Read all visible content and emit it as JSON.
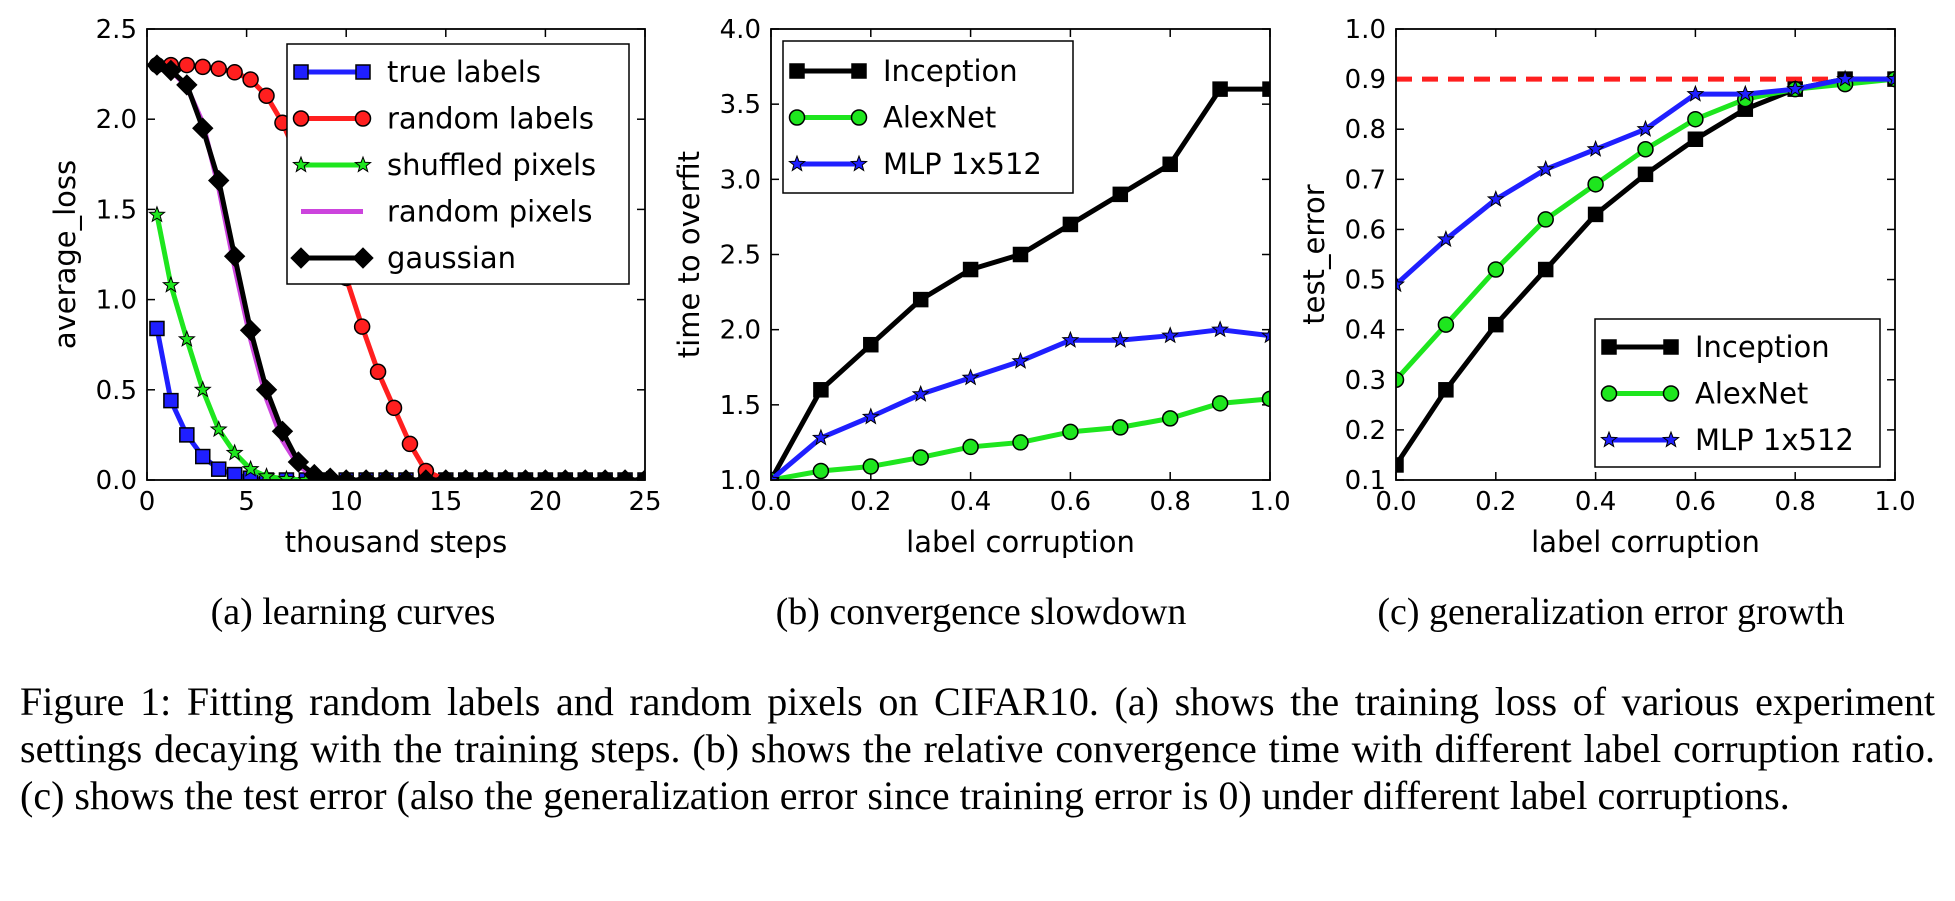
{
  "caption": "Figure 1: Fitting random labels and random pixels on CIFAR10. (a) shows the training loss of various experiment settings decaying with the training steps. (b) shows the relative convergence time with different label corruption ratio. (c) shows the test error (also the generalization error since training error is 0) under different label corruptions.",
  "chart_data": [
    {
      "id": "a",
      "type": "line",
      "subcaption": "(a) learning curves",
      "xlabel": "thousand steps",
      "ylabel": "average_loss",
      "xlim": [
        0,
        25
      ],
      "ylim": [
        0,
        2.5
      ],
      "xticks": [
        0,
        5,
        10,
        15,
        20,
        25
      ],
      "xtick_labels": [
        "0",
        "5",
        "10",
        "15",
        "20",
        "25"
      ],
      "yticks": [
        0,
        0.5,
        1.0,
        1.5,
        2.0,
        2.5
      ],
      "ytick_labels": [
        "0.0",
        "0.5",
        "1.0",
        "1.5",
        "2.0",
        "2.5"
      ],
      "grid": false,
      "legend_position": "top-right",
      "series": [
        {
          "name": "true labels",
          "color": "#1f1fff",
          "marker": "square",
          "x": [
            0.5,
            1.2,
            2.0,
            2.8,
            3.6,
            4.4,
            5.2,
            6.0,
            7.0,
            8.0,
            9.0,
            10,
            11,
            12,
            13,
            14,
            15,
            16,
            17,
            18,
            19,
            20,
            21,
            22,
            23,
            24,
            25
          ],
          "y": [
            0.84,
            0.44,
            0.25,
            0.13,
            0.06,
            0.03,
            0.01,
            0.0,
            0,
            0,
            0,
            0,
            0,
            0,
            0,
            0,
            0,
            0,
            0,
            0,
            0,
            0,
            0,
            0,
            0,
            0,
            0
          ]
        },
        {
          "name": "random labels",
          "color": "#ff1f1f",
          "marker": "circle",
          "x": [
            0.5,
            1.2,
            2.0,
            2.8,
            3.6,
            4.4,
            5.2,
            6.0,
            6.8,
            7.6,
            8.4,
            9.2,
            10.0,
            10.8,
            11.6,
            12.4,
            13.2,
            14.0,
            15,
            16,
            17,
            18,
            19,
            20,
            21,
            22,
            23,
            24,
            25
          ],
          "y": [
            2.3,
            2.3,
            2.3,
            2.29,
            2.28,
            2.26,
            2.22,
            2.13,
            1.98,
            1.78,
            1.52,
            1.23,
            1.12,
            0.85,
            0.6,
            0.4,
            0.2,
            0.05,
            0,
            0,
            0,
            0,
            0,
            0,
            0,
            0,
            0,
            0,
            0
          ]
        },
        {
          "name": "shuffled pixels",
          "color": "#1ee61e",
          "marker": "star",
          "x": [
            0.5,
            1.2,
            2.0,
            2.8,
            3.6,
            4.4,
            5.2,
            6.0,
            7.0,
            8.0,
            9.0,
            10,
            11,
            12,
            13,
            14,
            15,
            16,
            17,
            18,
            19,
            20,
            21,
            22,
            23,
            24,
            25
          ],
          "y": [
            1.47,
            1.08,
            0.78,
            0.5,
            0.28,
            0.15,
            0.06,
            0.02,
            0.005,
            0,
            0,
            0,
            0,
            0,
            0,
            0,
            0,
            0,
            0,
            0,
            0,
            0,
            0,
            0,
            0,
            0,
            0
          ]
        },
        {
          "name": "random pixels",
          "color": "#cc44dd",
          "marker": "none",
          "x": [
            0.5,
            1.2,
            2.0,
            2.8,
            3.6,
            4.4,
            5.2,
            6.0,
            6.8,
            7.6,
            8.4,
            9.2,
            10,
            25
          ],
          "y": [
            2.3,
            2.27,
            2.18,
            1.98,
            1.62,
            1.18,
            0.78,
            0.45,
            0.22,
            0.08,
            0.02,
            0.0,
            0.0,
            0.0
          ]
        },
        {
          "name": "gaussian",
          "color": "#000000",
          "marker": "diamond",
          "x": [
            0.5,
            1.2,
            2.0,
            2.8,
            3.6,
            4.4,
            5.2,
            6.0,
            6.8,
            7.6,
            8.4,
            9.2,
            10,
            11,
            12,
            13,
            14,
            15,
            16,
            17,
            18,
            19,
            20,
            21,
            22,
            23,
            24,
            25
          ],
          "y": [
            2.3,
            2.27,
            2.19,
            1.95,
            1.66,
            1.24,
            0.83,
            0.5,
            0.27,
            0.1,
            0.03,
            0.01,
            0,
            0,
            0,
            0,
            0,
            0,
            0,
            0,
            0,
            0,
            0,
            0,
            0,
            0,
            0,
            0
          ]
        }
      ]
    },
    {
      "id": "b",
      "type": "line",
      "subcaption": "(b) convergence slowdown",
      "xlabel": "label corruption",
      "ylabel": "time to overfit",
      "xlim": [
        0,
        1.0
      ],
      "ylim": [
        1.0,
        4.0
      ],
      "xticks": [
        0,
        0.2,
        0.4,
        0.6,
        0.8,
        1.0
      ],
      "xtick_labels": [
        "0.0",
        "0.2",
        "0.4",
        "0.6",
        "0.8",
        "1.0"
      ],
      "yticks": [
        1.0,
        1.5,
        2.0,
        2.5,
        3.0,
        3.5,
        4.0
      ],
      "ytick_labels": [
        "1.0",
        "1.5",
        "2.0",
        "2.5",
        "3.0",
        "3.5",
        "4.0"
      ],
      "grid": false,
      "legend_position": "top-left",
      "series": [
        {
          "name": "Inception",
          "color": "#000000",
          "marker": "square",
          "x": [
            0,
            0.1,
            0.2,
            0.3,
            0.4,
            0.5,
            0.6,
            0.7,
            0.8,
            0.9,
            1.0
          ],
          "y": [
            1.0,
            1.6,
            1.9,
            2.2,
            2.4,
            2.5,
            2.7,
            2.9,
            3.1,
            3.6,
            3.6
          ]
        },
        {
          "name": "AlexNet",
          "color": "#1ee61e",
          "marker": "circle",
          "x": [
            0,
            0.1,
            0.2,
            0.3,
            0.4,
            0.5,
            0.6,
            0.7,
            0.8,
            0.9,
            1.0
          ],
          "y": [
            1.0,
            1.06,
            1.09,
            1.15,
            1.22,
            1.25,
            1.32,
            1.35,
            1.41,
            1.51,
            1.54
          ]
        },
        {
          "name": "MLP 1x512",
          "color": "#1f1fff",
          "marker": "star",
          "x": [
            0,
            0.1,
            0.2,
            0.3,
            0.4,
            0.5,
            0.6,
            0.7,
            0.8,
            0.9,
            1.0
          ],
          "y": [
            1.0,
            1.28,
            1.42,
            1.57,
            1.68,
            1.79,
            1.93,
            1.93,
            1.96,
            2.0,
            1.96
          ]
        }
      ]
    },
    {
      "id": "c",
      "type": "line",
      "subcaption": "(c) generalization error growth",
      "xlabel": "label corruption",
      "ylabel": "test_error",
      "xlim": [
        0,
        1.0
      ],
      "ylim": [
        0.1,
        1.0
      ],
      "xticks": [
        0,
        0.2,
        0.4,
        0.6,
        0.8,
        1.0
      ],
      "xtick_labels": [
        "0.0",
        "0.2",
        "0.4",
        "0.6",
        "0.8",
        "1.0"
      ],
      "yticks": [
        0.1,
        0.2,
        0.3,
        0.4,
        0.5,
        0.6,
        0.7,
        0.8,
        0.9,
        1.0
      ],
      "ytick_labels": [
        "0.1",
        "0.2",
        "0.3",
        "0.4",
        "0.5",
        "0.6",
        "0.7",
        "0.8",
        "0.9",
        "1.0"
      ],
      "grid": false,
      "legend_position": "bottom-right",
      "reference_line": {
        "y": 0.9,
        "color": "#ff1f1f",
        "style": "dashed"
      },
      "series": [
        {
          "name": "Inception",
          "color": "#000000",
          "marker": "square",
          "x": [
            0,
            0.1,
            0.2,
            0.3,
            0.4,
            0.5,
            0.6,
            0.7,
            0.8,
            0.9,
            1.0
          ],
          "y": [
            0.13,
            0.28,
            0.41,
            0.52,
            0.63,
            0.71,
            0.78,
            0.84,
            0.88,
            0.9,
            0.9
          ]
        },
        {
          "name": "AlexNet",
          "color": "#1ee61e",
          "marker": "circle",
          "x": [
            0,
            0.1,
            0.2,
            0.3,
            0.4,
            0.5,
            0.6,
            0.7,
            0.8,
            0.9,
            1.0
          ],
          "y": [
            0.3,
            0.41,
            0.52,
            0.62,
            0.69,
            0.76,
            0.82,
            0.86,
            0.88,
            0.89,
            0.9
          ]
        },
        {
          "name": "MLP 1x512",
          "color": "#1f1fff",
          "marker": "star",
          "x": [
            0,
            0.1,
            0.2,
            0.3,
            0.4,
            0.5,
            0.6,
            0.7,
            0.8,
            0.9,
            1.0
          ],
          "y": [
            0.49,
            0.58,
            0.66,
            0.72,
            0.76,
            0.8,
            0.87,
            0.87,
            0.88,
            0.9,
            0.9
          ]
        }
      ]
    }
  ]
}
